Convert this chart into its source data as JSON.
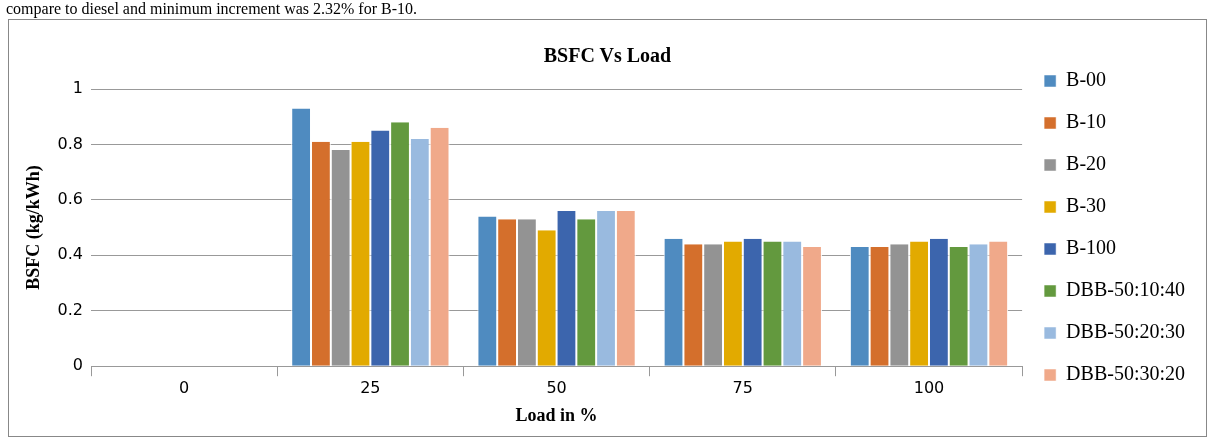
{
  "chart_data": {
    "type": "bar",
    "title": "BSFC Vs Load",
    "xlabel": "Load in %",
    "ylabel": "BSFC (kg/kWh)",
    "annotations": [
      "compare to diesel and minimum increment was 2.32% for B-10."
    ],
    "categories": [
      "0",
      "25",
      "50",
      "75",
      "100"
    ],
    "series": [
      {
        "name": "B-00",
        "color": "#4f8bc0",
        "values": [
          0,
          0.93,
          0.54,
          0.46,
          0.43
        ]
      },
      {
        "name": "B-10",
        "color": "#d46f2c",
        "values": [
          0,
          0.81,
          0.53,
          0.44,
          0.43
        ]
      },
      {
        "name": "B-20",
        "color": "#939393",
        "values": [
          0,
          0.78,
          0.53,
          0.44,
          0.44
        ]
      },
      {
        "name": "B-30",
        "color": "#e2aa00",
        "values": [
          0,
          0.81,
          0.49,
          0.45,
          0.45
        ]
      },
      {
        "name": "B-100",
        "color": "#3c65ad",
        "values": [
          0,
          0.85,
          0.56,
          0.46,
          0.46
        ]
      },
      {
        "name": "DBB-50:10:40",
        "color": "#63993e",
        "values": [
          0,
          0.88,
          0.53,
          0.45,
          0.43
        ]
      },
      {
        "name": "DBB-50:20:30",
        "color": "#99badf",
        "values": [
          0,
          0.82,
          0.56,
          0.45,
          0.44
        ]
      },
      {
        "name": "DBB-50:30:20",
        "color": "#f0a98a",
        "values": [
          0,
          0.86,
          0.56,
          0.43,
          0.45
        ]
      }
    ],
    "ylim": [
      0,
      1
    ],
    "yticks": [
      0,
      0.2,
      0.4,
      0.6,
      0.8,
      1
    ],
    "grid": "y",
    "legend": "right"
  }
}
